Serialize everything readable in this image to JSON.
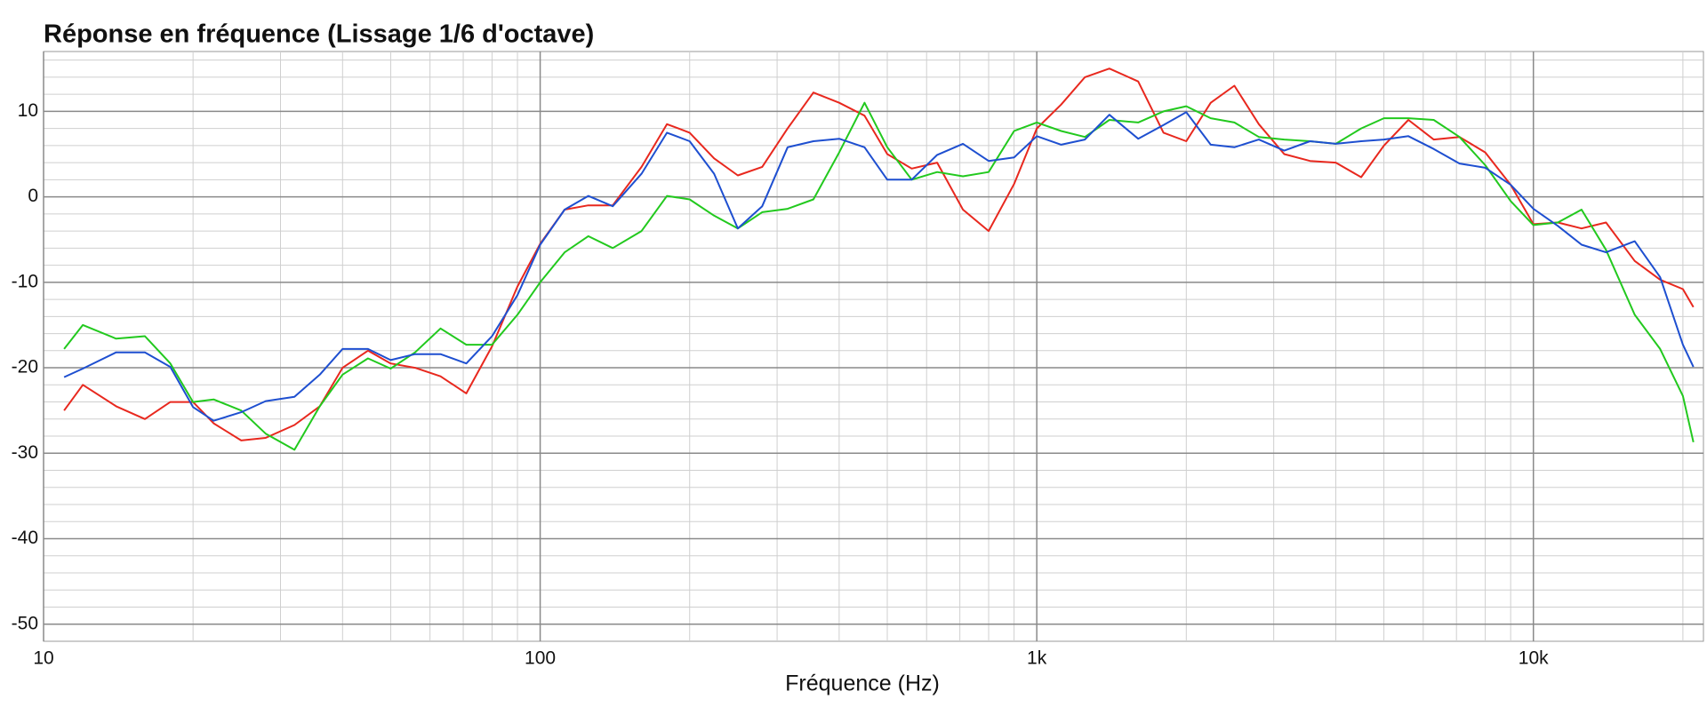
{
  "chart_data": {
    "type": "line",
    "title": "Réponse en fréquence (Lissage 1/6 d'octave)",
    "x_label": "Fréquence (Hz)",
    "log_x": true,
    "grid": true,
    "minor_grid": true,
    "xlim": [
      10,
      22000
    ],
    "xticks": [
      10,
      100,
      {
        "value": 1000,
        "label": "1k"
      },
      {
        "value": 10000,
        "label": "10k"
      }
    ],
    "ylim": [
      -52,
      17
    ],
    "yticks": [
      -50,
      -40,
      -30,
      -20,
      -10,
      0,
      10
    ],
    "x": [
      11,
      12,
      14,
      16,
      18,
      20,
      22,
      25,
      28,
      32,
      36,
      40,
      45,
      50,
      56,
      63,
      71,
      80,
      90,
      100,
      112,
      125,
      140,
      160,
      180,
      200,
      224,
      250,
      280,
      315,
      355,
      400,
      450,
      500,
      560,
      630,
      710,
      800,
      900,
      1000,
      1120,
      1250,
      1400,
      1600,
      1800,
      2000,
      2240,
      2500,
      2800,
      3150,
      3550,
      4000,
      4500,
      5000,
      5600,
      6300,
      7100,
      8000,
      9000,
      10000,
      11200,
      12500,
      14000,
      16000,
      18000,
      20000,
      21000
    ],
    "series": [
      {
        "color": "#e8281e",
        "values": [
          -25,
          -22,
          -24.5,
          -26,
          -24,
          -24,
          -26.5,
          -28.5,
          -28.2,
          -26.7,
          -24.5,
          -20,
          -18,
          -19.5,
          -20,
          -21,
          -23,
          -17.5,
          -10.5,
          -5.5,
          -1.5,
          -1,
          -1,
          3.5,
          8.5,
          7.5,
          4.5,
          2.5,
          3.5,
          8,
          12.2,
          11,
          9.5,
          5,
          3.3,
          4,
          -1.5,
          -4,
          1.5,
          8,
          10.8,
          14,
          15,
          13.5,
          7.5,
          6.5,
          11,
          13,
          8.5,
          5,
          4.2,
          4,
          2.3,
          6,
          9,
          6.7,
          7,
          5.2,
          1.4,
          -3.2,
          -3,
          -3.7,
          -3,
          -7.5,
          -9.7,
          -10.8,
          -12.9
        ]
      },
      {
        "color": "#22c91e",
        "values": [
          -17.8,
          -15,
          -16.6,
          -16.3,
          -19.5,
          -24,
          -23.7,
          -25,
          -27.7,
          -29.6,
          -24.5,
          -20.8,
          -18.9,
          -20.1,
          -18.2,
          -15.4,
          -17.3,
          -17.3,
          -13.8,
          -10,
          -6.5,
          -4.6,
          -6,
          -4,
          0.1,
          -0.3,
          -2.2,
          -3.7,
          -1.8,
          -1.4,
          -0.3,
          5.2,
          11,
          5.8,
          2,
          2.9,
          2.4,
          2.9,
          7.7,
          8.7,
          7.7,
          7,
          9,
          8.7,
          10,
          10.6,
          9.2,
          8.7,
          7,
          6.7,
          6.5,
          6.2,
          8,
          9.2,
          9.2,
          9,
          7,
          3.7,
          -0.5,
          -3.3,
          -3,
          -1.5,
          -6.2,
          -13.8,
          -17.8,
          -23.3,
          -28.7
        ]
      },
      {
        "color": "#1e4fd0",
        "values": [
          -21.1,
          -20.1,
          -18.2,
          -18.2,
          -19.9,
          -24.6,
          -26.2,
          -25.2,
          -23.9,
          -23.4,
          -20.8,
          -17.8,
          -17.8,
          -19.1,
          -18.4,
          -18.4,
          -19.5,
          -16.3,
          -11.5,
          -5.6,
          -1.5,
          0.1,
          -1.1,
          2.7,
          7.5,
          6.5,
          2.7,
          -3.7,
          -1.1,
          5.8,
          6.5,
          6.8,
          5.8,
          2,
          2,
          4.9,
          6.2,
          4.2,
          4.6,
          7.1,
          6.1,
          6.7,
          9.6,
          6.8,
          8.4,
          9.9,
          6.1,
          5.8,
          6.7,
          5.4,
          6.5,
          6.2,
          6.5,
          6.7,
          7.1,
          5.6,
          3.9,
          3.4,
          1.4,
          -1.4,
          -3.4,
          -5.6,
          -6.5,
          -5.2,
          -9.4,
          -17.3,
          -19.9
        ]
      }
    ]
  }
}
